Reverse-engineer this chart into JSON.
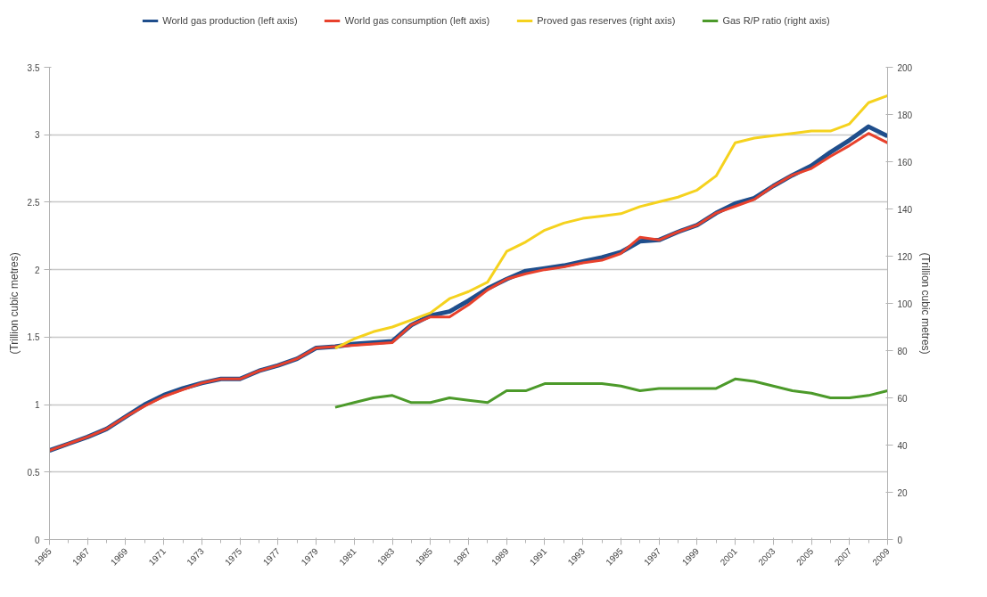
{
  "chart_data": {
    "type": "line",
    "ylabel": "(Trillion cubic metres)",
    "y2label": "(Trillion cubic metres)",
    "x": [
      1965,
      1966,
      1967,
      1968,
      1969,
      1970,
      1971,
      1972,
      1973,
      1974,
      1975,
      1976,
      1977,
      1978,
      1979,
      1980,
      1981,
      1982,
      1983,
      1984,
      1985,
      1986,
      1987,
      1988,
      1989,
      1990,
      1991,
      1992,
      1993,
      1994,
      1995,
      1996,
      1997,
      1998,
      1999,
      2000,
      2001,
      2002,
      2003,
      2004,
      2005,
      2006,
      2007,
      2008,
      2009
    ],
    "series": [
      {
        "name": "World gas production (left axis)",
        "color": "#1f4e8c",
        "values": [
          0.66,
          0.71,
          0.76,
          0.82,
          0.91,
          1.0,
          1.07,
          1.12,
          1.16,
          1.19,
          1.19,
          1.25,
          1.29,
          1.34,
          1.42,
          1.43,
          1.45,
          1.46,
          1.47,
          1.59,
          1.66,
          1.69,
          1.77,
          1.86,
          1.93,
          1.99,
          2.01,
          2.03,
          2.06,
          2.09,
          2.13,
          2.21,
          2.22,
          2.28,
          2.33,
          2.42,
          2.49,
          2.53,
          2.62,
          2.7,
          2.77,
          2.87,
          2.96,
          3.06,
          2.99
        ]
      },
      {
        "name": "World gas consumption (left axis)",
        "color": "#e8412c",
        "values": [
          0.66,
          0.71,
          0.76,
          0.82,
          0.91,
          0.99,
          1.06,
          1.11,
          1.16,
          1.19,
          1.19,
          1.25,
          1.29,
          1.34,
          1.42,
          1.43,
          1.44,
          1.45,
          1.46,
          1.59,
          1.65,
          1.65,
          1.74,
          1.85,
          1.93,
          1.97,
          2.0,
          2.02,
          2.05,
          2.07,
          2.12,
          2.24,
          2.22,
          2.28,
          2.33,
          2.42,
          2.47,
          2.52,
          2.62,
          2.7,
          2.75,
          2.84,
          2.92,
          3.01,
          2.94
        ]
      },
      {
        "name": "Proved gas reserves (right axis)",
        "color": "#f5d21e",
        "axis": "y2",
        "x": [
          1980,
          1981,
          1982,
          1983,
          1984,
          1985,
          1986,
          1987,
          1988,
          1989,
          1990,
          1991,
          1992,
          1993,
          1994,
          1995,
          1996,
          1997,
          1998,
          1999,
          2000,
          2001,
          2002,
          2003,
          2004,
          2005,
          2006,
          2007,
          2008,
          2009
        ],
        "values": [
          81,
          85,
          88,
          90,
          93,
          96,
          102,
          105,
          109,
          122,
          126,
          131,
          134,
          136,
          137,
          138,
          141,
          143,
          145,
          148,
          154,
          168,
          170,
          171,
          172,
          173,
          173,
          176,
          185,
          188
        ]
      },
      {
        "name": "Gas R/P ratio (right axis)",
        "color": "#4c9a2a",
        "axis": "y2",
        "x": [
          1980,
          1981,
          1982,
          1983,
          1984,
          1985,
          1986,
          1987,
          1988,
          1989,
          1990,
          1991,
          1992,
          1993,
          1994,
          1995,
          1996,
          1997,
          1998,
          1999,
          2000,
          2001,
          2002,
          2003,
          2004,
          2005,
          2006,
          2007,
          2008,
          2009
        ],
        "values": [
          56,
          58,
          60,
          61,
          58,
          58,
          60,
          59,
          58,
          63,
          63,
          66,
          66,
          66,
          66,
          65,
          63,
          64,
          64,
          64,
          64,
          68,
          67,
          65,
          63,
          62,
          60,
          60,
          61,
          63
        ]
      }
    ],
    "xlim": [
      1965,
      2009
    ],
    "xticks": [
      1965,
      1967,
      1969,
      1971,
      1973,
      1975,
      1977,
      1979,
      1981,
      1983,
      1985,
      1987,
      1989,
      1991,
      1993,
      1995,
      1997,
      1999,
      2001,
      2003,
      2005,
      2007,
      2009
    ],
    "ylim": [
      0,
      3.5
    ],
    "yticks": [
      0,
      0.5,
      1,
      1.5,
      2,
      2.5,
      3,
      3.5
    ],
    "y2lim": [
      0,
      200
    ],
    "y2ticks": [
      0,
      20,
      40,
      60,
      80,
      100,
      120,
      140,
      160,
      180,
      200
    ],
    "grid": "y",
    "legend": "top",
    "marker": "none",
    "line_style": "solid"
  }
}
